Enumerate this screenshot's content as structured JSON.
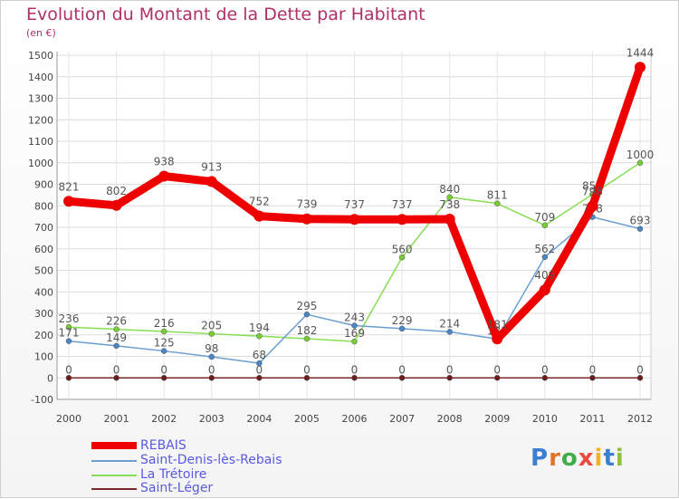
{
  "title": "Evolution du Montant de la Dette par Habitant",
  "subtitle": "(en €)",
  "logo": "Proxiti",
  "chart_data": {
    "type": "line",
    "x": [
      2000,
      2001,
      2002,
      2003,
      2004,
      2005,
      2006,
      2007,
      2008,
      2009,
      2010,
      2011,
      2012
    ],
    "ylim": [
      -100,
      1500
    ],
    "yticks": [
      -100,
      0,
      100,
      200,
      300,
      400,
      500,
      600,
      700,
      800,
      900,
      1000,
      1100,
      1200,
      1300,
      1400,
      1500
    ],
    "grid": true,
    "legend_position": "bottom-left",
    "series": [
      {
        "name": "La Trétoire",
        "color": "#88dd55",
        "values": [
          236,
          226,
          216,
          205,
          194,
          182,
          169,
          560,
          840,
          811,
          709,
          853,
          1000
        ]
      },
      {
        "name": "Saint-Denis-lès-Rebais",
        "color": "#6b9fcf",
        "values": [
          171,
          149,
          125,
          98,
          68,
          295,
          243,
          229,
          214,
          181,
          562,
          748,
          693
        ]
      },
      {
        "name": "Saint-Léger",
        "color": "#7a2a2a",
        "values": [
          0,
          0,
          0,
          0,
          0,
          0,
          0,
          0,
          0,
          0,
          0,
          0,
          0
        ]
      },
      {
        "name": "REBAIS",
        "color": "#ee0000",
        "values": [
          821,
          802,
          938,
          913,
          752,
          739,
          737,
          737,
          738,
          181,
          409,
          798,
          1444
        ]
      }
    ],
    "legend": [
      "REBAIS",
      "Saint-Denis-lès-Rebais",
      "La Trétoire",
      "Saint-Léger"
    ]
  }
}
